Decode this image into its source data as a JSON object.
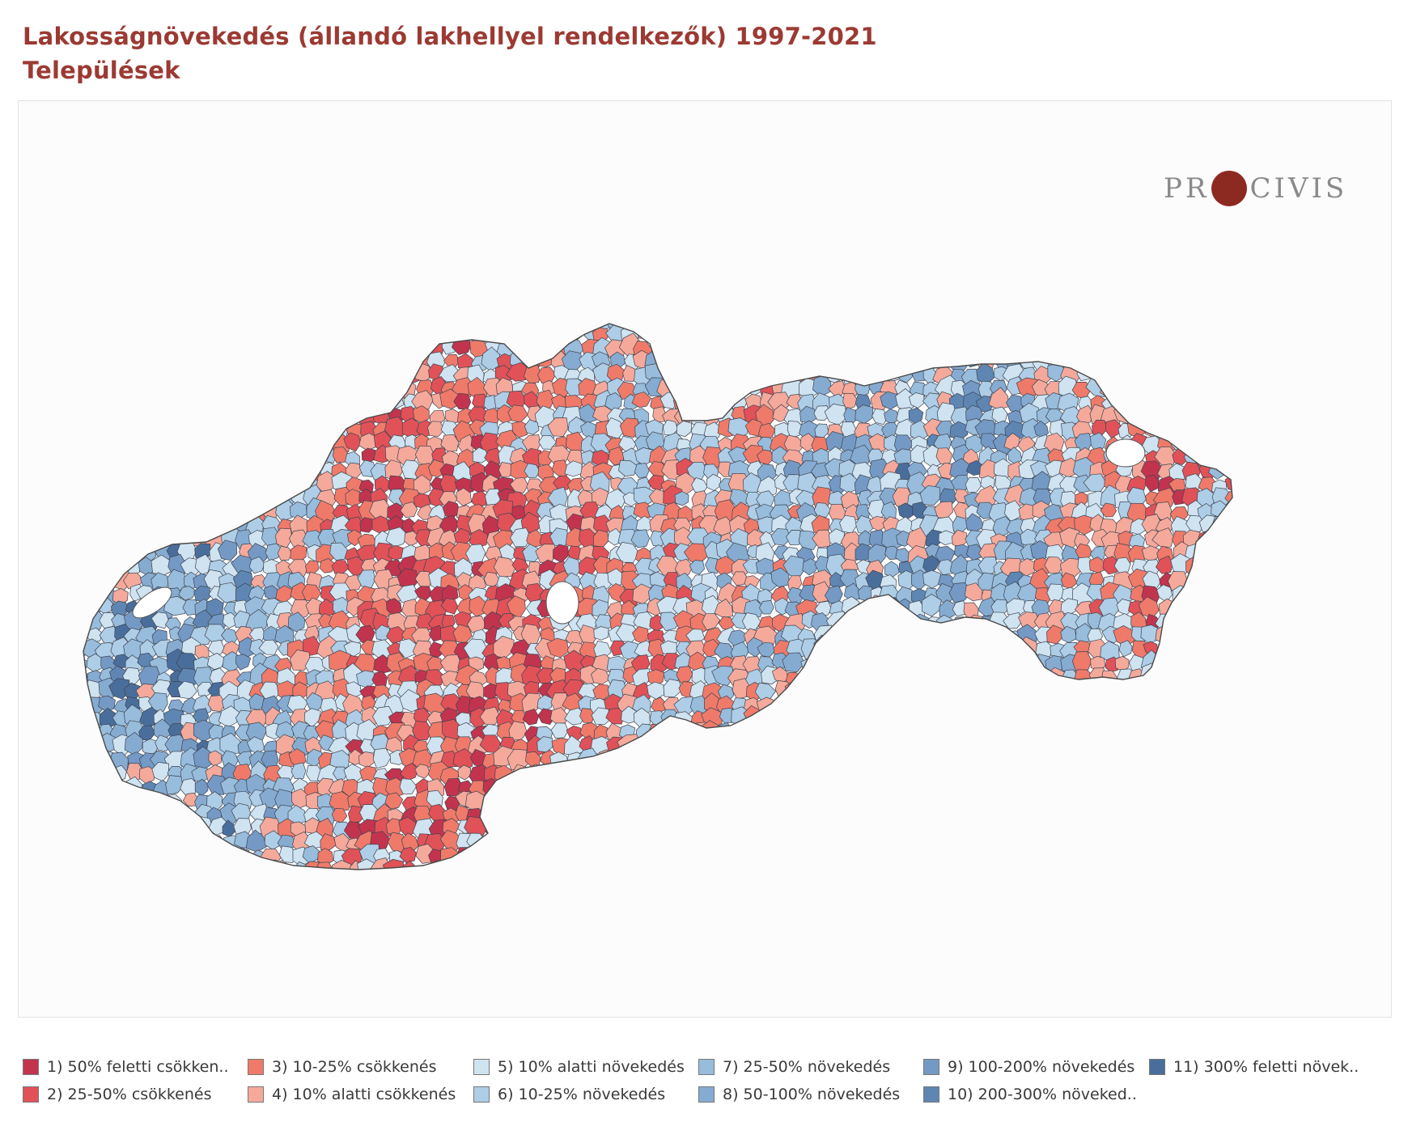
{
  "title": {
    "line1": "Lakosságnövekedés (állandó lakhellyel rendelkezők) 1997-2021",
    "line2": "Települések"
  },
  "logo": {
    "left_text": "PR",
    "right_text": "CIVIS",
    "dot_color": "#8c2a22"
  },
  "legend": [
    {
      "label": "1) 50% feletti csökken..",
      "color": "#c2344e"
    },
    {
      "label": "2) 25-50% csökkenés",
      "color": "#e05258"
    },
    {
      "label": "3) 10-25% csökkenés",
      "color": "#ef7a6a"
    },
    {
      "label": "4) 10% alatti csökkenés",
      "color": "#f5a99b"
    },
    {
      "label": "5) 10% alatti növekedés",
      "color": "#cfe3f1"
    },
    {
      "label": "6) 10-25% növekedés",
      "color": "#aecde6"
    },
    {
      "label": "7) 25-50% növekedés",
      "color": "#97bcdc"
    },
    {
      "label": "8) 50-100% növekedés",
      "color": "#86abd1"
    },
    {
      "label": "9) 100-200% növekedés",
      "color": "#7499c4"
    },
    {
      "label": "10) 200-300% növeked..",
      "color": "#5f86b3"
    },
    {
      "label": "11) 300% feletti növek..",
      "color": "#4a6e9b"
    }
  ]
}
